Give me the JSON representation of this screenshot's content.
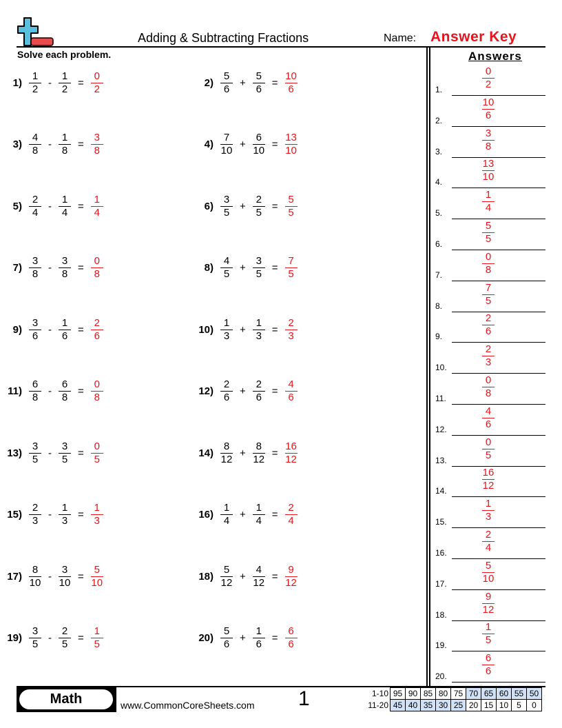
{
  "header": {
    "title": "Adding & Subtracting Fractions",
    "name_label": "Name:",
    "name_value": "Answer Key",
    "logo": "plus-minus-logo-icon"
  },
  "instructions": "Solve each problem.",
  "answers_title": "Answers",
  "colors": {
    "answer": "#e8141b",
    "logo_plus": "#5bbfe0",
    "logo_minus": "#e84c4c",
    "score_highlight": "#cfe2f8"
  },
  "problems": [
    {
      "label": "1)",
      "a": [
        "1",
        "2"
      ],
      "op": "-",
      "b": [
        "1",
        "2"
      ],
      "eq": "=",
      "ans": [
        "0",
        "2"
      ]
    },
    {
      "label": "2)",
      "a": [
        "5",
        "6"
      ],
      "op": "+",
      "b": [
        "5",
        "6"
      ],
      "eq": "=",
      "ans": [
        "10",
        "6"
      ]
    },
    {
      "label": "3)",
      "a": [
        "4",
        "8"
      ],
      "op": "-",
      "b": [
        "1",
        "8"
      ],
      "eq": "=",
      "ans": [
        "3",
        "8"
      ]
    },
    {
      "label": "4)",
      "a": [
        "7",
        "10"
      ],
      "op": "+",
      "b": [
        "6",
        "10"
      ],
      "eq": "=",
      "ans": [
        "13",
        "10"
      ]
    },
    {
      "label": "5)",
      "a": [
        "2",
        "4"
      ],
      "op": "-",
      "b": [
        "1",
        "4"
      ],
      "eq": "=",
      "ans": [
        "1",
        "4"
      ]
    },
    {
      "label": "6)",
      "a": [
        "3",
        "5"
      ],
      "op": "+",
      "b": [
        "2",
        "5"
      ],
      "eq": "=",
      "ans": [
        "5",
        "5"
      ]
    },
    {
      "label": "7)",
      "a": [
        "3",
        "8"
      ],
      "op": "-",
      "b": [
        "3",
        "8"
      ],
      "eq": "=",
      "ans": [
        "0",
        "8"
      ]
    },
    {
      "label": "8)",
      "a": [
        "4",
        "5"
      ],
      "op": "+",
      "b": [
        "3",
        "5"
      ],
      "eq": "=",
      "ans": [
        "7",
        "5"
      ]
    },
    {
      "label": "9)",
      "a": [
        "3",
        "6"
      ],
      "op": "-",
      "b": [
        "1",
        "6"
      ],
      "eq": "=",
      "ans": [
        "2",
        "6"
      ]
    },
    {
      "label": "10)",
      "a": [
        "1",
        "3"
      ],
      "op": "+",
      "b": [
        "1",
        "3"
      ],
      "eq": "=",
      "ans": [
        "2",
        "3"
      ]
    },
    {
      "label": "11)",
      "a": [
        "6",
        "8"
      ],
      "op": "-",
      "b": [
        "6",
        "8"
      ],
      "eq": "=",
      "ans": [
        "0",
        "8"
      ]
    },
    {
      "label": "12)",
      "a": [
        "2",
        "6"
      ],
      "op": "+",
      "b": [
        "2",
        "6"
      ],
      "eq": "=",
      "ans": [
        "4",
        "6"
      ]
    },
    {
      "label": "13)",
      "a": [
        "3",
        "5"
      ],
      "op": "-",
      "b": [
        "3",
        "5"
      ],
      "eq": "=",
      "ans": [
        "0",
        "5"
      ]
    },
    {
      "label": "14)",
      "a": [
        "8",
        "12"
      ],
      "op": "+",
      "b": [
        "8",
        "12"
      ],
      "eq": "=",
      "ans": [
        "16",
        "12"
      ]
    },
    {
      "label": "15)",
      "a": [
        "2",
        "3"
      ],
      "op": "-",
      "b": [
        "1",
        "3"
      ],
      "eq": "=",
      "ans": [
        "1",
        "3"
      ]
    },
    {
      "label": "16)",
      "a": [
        "1",
        "4"
      ],
      "op": "+",
      "b": [
        "1",
        "4"
      ],
      "eq": "=",
      "ans": [
        "2",
        "4"
      ]
    },
    {
      "label": "17)",
      "a": [
        "8",
        "10"
      ],
      "op": "-",
      "b": [
        "3",
        "10"
      ],
      "eq": "=",
      "ans": [
        "5",
        "10"
      ]
    },
    {
      "label": "18)",
      "a": [
        "5",
        "12"
      ],
      "op": "+",
      "b": [
        "4",
        "12"
      ],
      "eq": "=",
      "ans": [
        "9",
        "12"
      ]
    },
    {
      "label": "19)",
      "a": [
        "3",
        "5"
      ],
      "op": "-",
      "b": [
        "2",
        "5"
      ],
      "eq": "=",
      "ans": [
        "1",
        "5"
      ]
    },
    {
      "label": "20)",
      "a": [
        "5",
        "6"
      ],
      "op": "+",
      "b": [
        "1",
        "6"
      ],
      "eq": "=",
      "ans": [
        "6",
        "6"
      ]
    }
  ],
  "answer_labels": [
    "1.",
    "2.",
    "3.",
    "4.",
    "5.",
    "6.",
    "7.",
    "8.",
    "9.",
    "10.",
    "11.",
    "12.",
    "13.",
    "14.",
    "15.",
    "16.",
    "17.",
    "18.",
    "19.",
    "20."
  ],
  "footer": {
    "subject": "Math",
    "site": "www.CommonCoreSheets.com",
    "page": "1",
    "score_rows": [
      {
        "label": "1-10",
        "values": [
          "95",
          "90",
          "85",
          "80",
          "75",
          "70",
          "65",
          "60",
          "55",
          "50"
        ],
        "highlighted": [
          false,
          false,
          false,
          false,
          false,
          true,
          true,
          true,
          true,
          true
        ]
      },
      {
        "label": "11-20",
        "values": [
          "45",
          "40",
          "35",
          "30",
          "25",
          "20",
          "15",
          "10",
          "5",
          "0"
        ],
        "highlighted": [
          true,
          true,
          true,
          true,
          true,
          false,
          false,
          false,
          false,
          false
        ]
      }
    ]
  }
}
